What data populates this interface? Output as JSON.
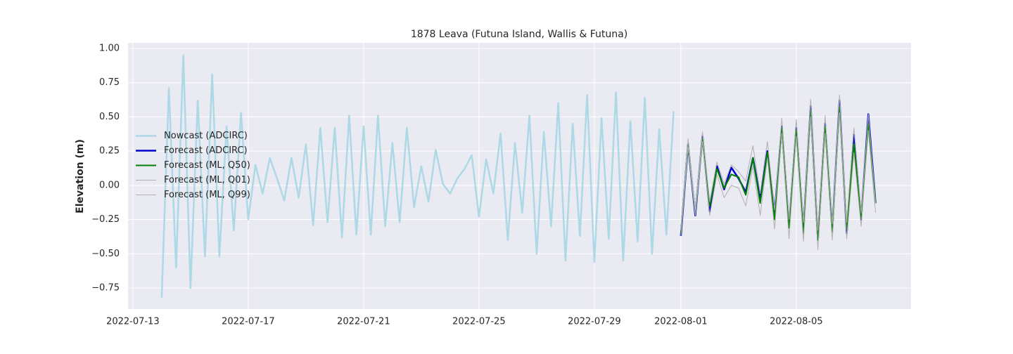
{
  "chart_data": {
    "type": "line",
    "title": "1878 Leava (Futuna Island, Wallis & Futuna)",
    "y_label": "Elevation (m)",
    "x": [
      "2022-07-14 00:00",
      "2022-07-14 06:00",
      "2022-07-14 12:00",
      "2022-07-14 18:00",
      "2022-07-15 00:00",
      "2022-07-15 06:00",
      "2022-07-15 12:00",
      "2022-07-15 18:00",
      "2022-07-16 00:00",
      "2022-07-16 06:00",
      "2022-07-16 12:00",
      "2022-07-16 18:00",
      "2022-07-17 00:00",
      "2022-07-17 06:00",
      "2022-07-17 12:00",
      "2022-07-17 18:00",
      "2022-07-18 00:00",
      "2022-07-18 06:00",
      "2022-07-18 12:00",
      "2022-07-18 18:00",
      "2022-07-19 00:00",
      "2022-07-19 06:00",
      "2022-07-19 12:00",
      "2022-07-19 18:00",
      "2022-07-20 00:00",
      "2022-07-20 06:00",
      "2022-07-20 12:00",
      "2022-07-20 18:00",
      "2022-07-21 00:00",
      "2022-07-21 06:00",
      "2022-07-21 12:00",
      "2022-07-21 18:00",
      "2022-07-22 00:00",
      "2022-07-22 06:00",
      "2022-07-22 12:00",
      "2022-07-22 18:00",
      "2022-07-23 00:00",
      "2022-07-23 06:00",
      "2022-07-23 12:00",
      "2022-07-23 18:00",
      "2022-07-24 00:00",
      "2022-07-24 06:00",
      "2022-07-24 12:00",
      "2022-07-24 18:00",
      "2022-07-25 00:00",
      "2022-07-25 06:00",
      "2022-07-25 12:00",
      "2022-07-25 18:00",
      "2022-07-26 00:00",
      "2022-07-26 06:00",
      "2022-07-26 12:00",
      "2022-07-26 18:00",
      "2022-07-27 00:00",
      "2022-07-27 06:00",
      "2022-07-27 12:00",
      "2022-07-27 18:00",
      "2022-07-28 00:00",
      "2022-07-28 06:00",
      "2022-07-28 12:00",
      "2022-07-28 18:00",
      "2022-07-29 00:00",
      "2022-07-29 06:00",
      "2022-07-29 12:00",
      "2022-07-29 18:00",
      "2022-07-30 00:00",
      "2022-07-30 06:00",
      "2022-07-30 12:00",
      "2022-07-30 18:00",
      "2022-07-31 00:00",
      "2022-07-31 06:00",
      "2022-07-31 12:00",
      "2022-07-31 18:00",
      "2022-08-01 00:00",
      "2022-08-01 06:00",
      "2022-08-01 12:00",
      "2022-08-01 18:00",
      "2022-08-02 00:00",
      "2022-08-02 06:00",
      "2022-08-02 12:00",
      "2022-08-02 18:00",
      "2022-08-03 00:00",
      "2022-08-03 06:00",
      "2022-08-03 12:00",
      "2022-08-03 18:00",
      "2022-08-04 00:00",
      "2022-08-04 06:00",
      "2022-08-04 12:00",
      "2022-08-04 18:00",
      "2022-08-05 00:00",
      "2022-08-05 06:00",
      "2022-08-05 12:00",
      "2022-08-05 18:00",
      "2022-08-06 00:00",
      "2022-08-06 06:00",
      "2022-08-06 12:00",
      "2022-08-06 18:00",
      "2022-08-07 00:00",
      "2022-08-07 06:00",
      "2022-08-07 12:00",
      "2022-08-07 18:00"
    ],
    "series": [
      {
        "name": "Nowcast (ADCIRC)",
        "color": "#add8e6",
        "width": 2.5,
        "values": [
          -0.82,
          0.71,
          -0.6,
          0.95,
          -0.75,
          0.62,
          -0.52,
          0.81,
          -0.52,
          0.43,
          -0.33,
          0.53,
          -0.25,
          0.15,
          -0.06,
          0.2,
          0.05,
          -0.11,
          0.2,
          -0.09,
          0.3,
          -0.29,
          0.42,
          -0.27,
          0.42,
          -0.38,
          0.51,
          -0.36,
          0.43,
          -0.36,
          0.51,
          -0.3,
          0.31,
          -0.27,
          0.42,
          -0.16,
          0.14,
          -0.12,
          0.26,
          0.01,
          -0.06,
          0.05,
          0.12,
          0.22,
          -0.23,
          0.19,
          -0.06,
          0.38,
          -0.4,
          0.31,
          -0.2,
          0.51,
          -0.5,
          0.39,
          -0.3,
          0.6,
          -0.55,
          0.45,
          -0.37,
          0.66,
          -0.56,
          0.49,
          -0.39,
          0.68,
          -0.55,
          0.47,
          -0.41,
          0.64,
          -0.5,
          0.41,
          -0.36,
          0.54,
          null,
          null,
          null,
          null,
          null,
          null,
          null,
          null,
          null,
          null,
          null,
          null,
          null,
          null,
          null,
          null,
          null,
          null,
          null,
          null,
          null,
          null,
          null,
          null,
          null,
          null,
          null,
          null
        ]
      },
      {
        "name": "Forecast (ADCIRC)",
        "color": "#0000cd",
        "width": 2.5,
        "values": [
          null,
          null,
          null,
          null,
          null,
          null,
          null,
          null,
          null,
          null,
          null,
          null,
          null,
          null,
          null,
          null,
          null,
          null,
          null,
          null,
          null,
          null,
          null,
          null,
          null,
          null,
          null,
          null,
          null,
          null,
          null,
          null,
          null,
          null,
          null,
          null,
          null,
          null,
          null,
          null,
          null,
          null,
          null,
          null,
          null,
          null,
          null,
          null,
          null,
          null,
          null,
          null,
          null,
          null,
          null,
          null,
          null,
          null,
          null,
          null,
          null,
          null,
          null,
          null,
          null,
          null,
          null,
          null,
          null,
          null,
          null,
          null,
          -0.37,
          0.3,
          -0.22,
          0.36,
          -0.19,
          0.14,
          -0.03,
          0.13,
          0.05,
          -0.05,
          0.2,
          -0.1,
          0.25,
          -0.2,
          0.43,
          -0.3,
          0.42,
          -0.32,
          0.58,
          -0.4,
          0.45,
          -0.33,
          0.62,
          -0.35,
          0.37,
          -0.25,
          0.52,
          -0.13
        ]
      },
      {
        "name": "Forecast (ML, Q50)",
        "color": "#008000",
        "width": 2,
        "values": [
          null,
          null,
          null,
          null,
          null,
          null,
          null,
          null,
          null,
          null,
          null,
          null,
          null,
          null,
          null,
          null,
          null,
          null,
          null,
          null,
          null,
          null,
          null,
          null,
          null,
          null,
          null,
          null,
          null,
          null,
          null,
          null,
          null,
          null,
          null,
          null,
          null,
          null,
          null,
          null,
          null,
          null,
          null,
          null,
          null,
          null,
          null,
          null,
          null,
          null,
          null,
          null,
          null,
          null,
          null,
          null,
          null,
          null,
          null,
          null,
          null,
          null,
          null,
          null,
          null,
          null,
          null,
          null,
          null,
          null,
          null,
          null,
          -0.35,
          0.3,
          -0.2,
          0.34,
          -0.15,
          0.12,
          -0.02,
          0.08,
          0.06,
          -0.07,
          0.2,
          -0.13,
          0.24,
          -0.25,
          0.42,
          -0.31,
          0.4,
          -0.35,
          0.55,
          -0.4,
          0.43,
          -0.34,
          0.58,
          -0.32,
          0.3,
          -0.24,
          0.45,
          -0.13
        ]
      },
      {
        "name": "Forecast (ML, Q01)",
        "color": "#b0b0b0",
        "width": 1,
        "values": [
          null,
          null,
          null,
          null,
          null,
          null,
          null,
          null,
          null,
          null,
          null,
          null,
          null,
          null,
          null,
          null,
          null,
          null,
          null,
          null,
          null,
          null,
          null,
          null,
          null,
          null,
          null,
          null,
          null,
          null,
          null,
          null,
          null,
          null,
          null,
          null,
          null,
          null,
          null,
          null,
          null,
          null,
          null,
          null,
          null,
          null,
          null,
          null,
          null,
          null,
          null,
          null,
          null,
          null,
          null,
          null,
          null,
          null,
          null,
          null,
          null,
          null,
          null,
          null,
          null,
          null,
          null,
          null,
          null,
          null,
          null,
          null,
          -0.37,
          0.28,
          -0.22,
          0.32,
          -0.22,
          0.08,
          -0.09,
          0.0,
          -0.02,
          -0.15,
          0.14,
          -0.22,
          0.2,
          -0.32,
          0.38,
          -0.39,
          0.36,
          -0.41,
          0.5,
          -0.47,
          0.38,
          -0.4,
          0.53,
          -0.39,
          0.24,
          -0.3,
          0.4,
          -0.2
        ]
      },
      {
        "name": "Forecast (ML, Q99)",
        "color": "#b0b0b0",
        "width": 1,
        "values": [
          null,
          null,
          null,
          null,
          null,
          null,
          null,
          null,
          null,
          null,
          null,
          null,
          null,
          null,
          null,
          null,
          null,
          null,
          null,
          null,
          null,
          null,
          null,
          null,
          null,
          null,
          null,
          null,
          null,
          null,
          null,
          null,
          null,
          null,
          null,
          null,
          null,
          null,
          null,
          null,
          null,
          null,
          null,
          null,
          null,
          null,
          null,
          null,
          null,
          null,
          null,
          null,
          null,
          null,
          null,
          null,
          null,
          null,
          null,
          null,
          null,
          null,
          null,
          null,
          null,
          null,
          null,
          null,
          null,
          null,
          null,
          null,
          -0.33,
          0.34,
          -0.18,
          0.39,
          -0.12,
          0.17,
          0.01,
          0.15,
          0.1,
          0.03,
          0.29,
          -0.06,
          0.32,
          -0.18,
          0.49,
          -0.25,
          0.48,
          -0.27,
          0.63,
          -0.33,
          0.51,
          -0.28,
          0.66,
          -0.27,
          0.42,
          -0.2,
          0.52,
          -0.13
        ]
      }
    ],
    "xlim": [
      "2022-07-12 20:00",
      "2022-08-08 23:30"
    ],
    "xticks": [
      "2022-07-13",
      "2022-07-17",
      "2022-07-21",
      "2022-07-25",
      "2022-07-29",
      "2022-08-01",
      "2022-08-05"
    ],
    "ylim": [
      -0.904,
      1.041
    ],
    "yticks": [
      {
        "value": -0.75,
        "label": "−0.75"
      },
      {
        "value": -0.5,
        "label": "−0.50"
      },
      {
        "value": -0.25,
        "label": "−0.25"
      },
      {
        "value": 0,
        "label": "0.00"
      },
      {
        "value": 0.25,
        "label": "0.25"
      },
      {
        "value": 0.5,
        "label": "0.50"
      },
      {
        "value": 0.75,
        "label": "0.75"
      },
      {
        "value": 1,
        "label": "1.00"
      }
    ],
    "grid": true,
    "legend": "center left"
  }
}
